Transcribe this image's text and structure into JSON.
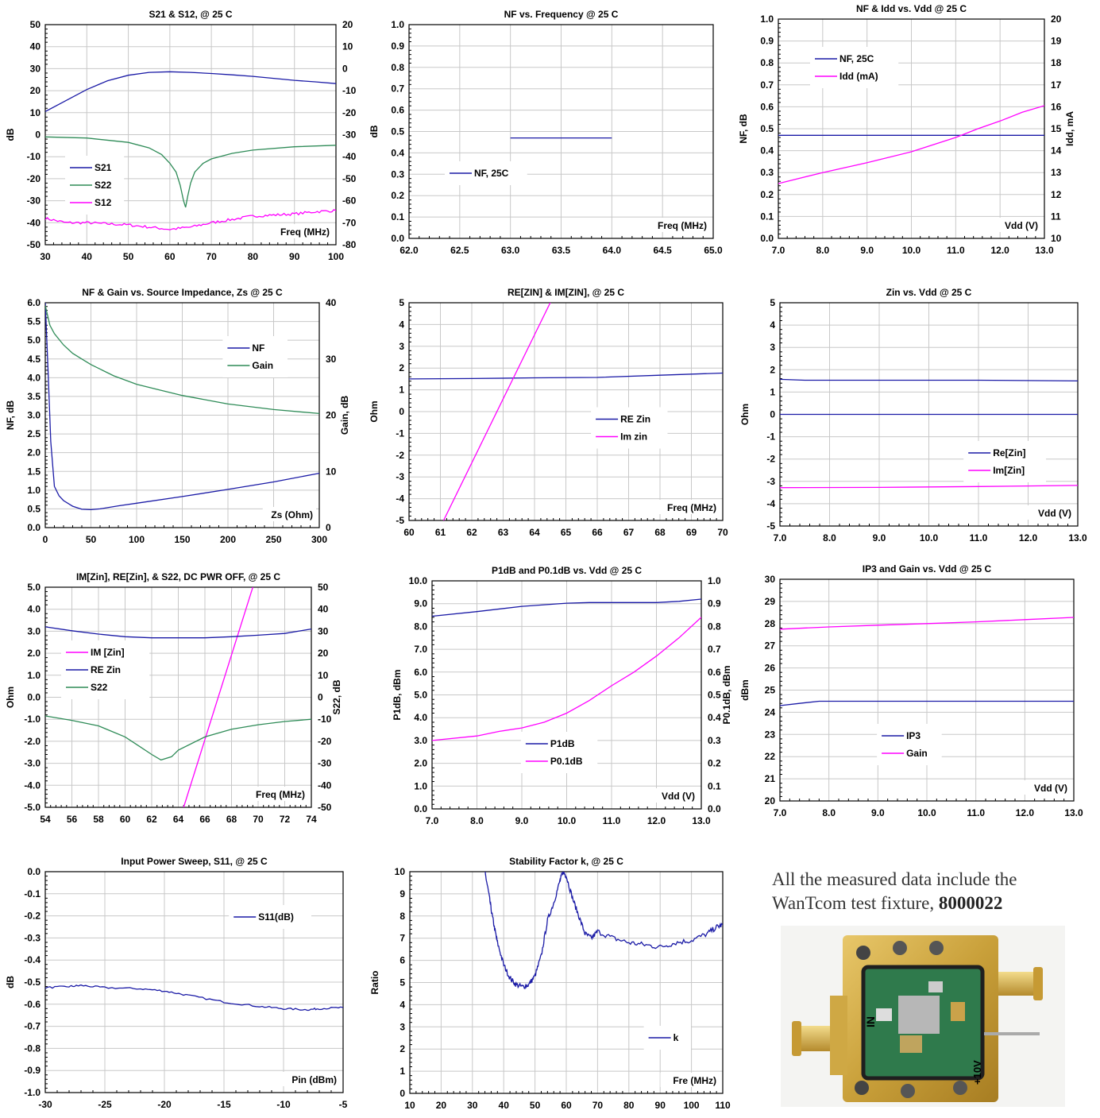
{
  "note": {
    "text": "All the measured data include the WanTcom test fixture, ",
    "bold": "8000022"
  },
  "photo": {
    "labels": [
      "IN",
      "+10V"
    ]
  },
  "chart_data": [
    {
      "title": "S21 & S12,  @ 25 C",
      "type": "line",
      "xlabel_inside": "Freq (MHz)",
      "ylabel": "dB",
      "y2label": "",
      "xlim": [
        30,
        100
      ],
      "xticks": [
        30,
        40,
        50,
        60,
        70,
        80,
        90,
        100
      ],
      "ylim": [
        -50,
        50
      ],
      "yticks": [
        -50,
        -40,
        -30,
        -20,
        -10,
        0,
        10,
        20,
        30,
        40,
        50
      ],
      "y2lim": [
        -80,
        20
      ],
      "y2ticks": [
        -80,
        -70,
        -60,
        -50,
        -40,
        -30,
        -20,
        -10,
        0,
        10,
        20
      ],
      "legend": "lower-left",
      "series": [
        {
          "name": "S21",
          "color": "#1a1aa6",
          "axis": "y",
          "noise": 0,
          "x": [
            30,
            35,
            40,
            45,
            50,
            55,
            60,
            65,
            70,
            75,
            80,
            85,
            90,
            95,
            100
          ],
          "y": [
            10.5,
            15.5,
            20.5,
            24.5,
            27,
            28.3,
            28.6,
            28.3,
            27.8,
            27.2,
            26.5,
            25.6,
            24.7,
            24,
            23.2
          ]
        },
        {
          "name": "S22",
          "color": "#2e8b57",
          "axis": "y",
          "noise": 0,
          "x": [
            30,
            40,
            50,
            55,
            58,
            60,
            61.5,
            62.5,
            63.3,
            63.8,
            64.3,
            65,
            66,
            68,
            70,
            75,
            80,
            90,
            100
          ],
          "y": [
            -1,
            -1.5,
            -3.5,
            -6,
            -9,
            -13,
            -17,
            -23,
            -30,
            -33,
            -28,
            -22,
            -17,
            -13,
            -11,
            -8.5,
            -7,
            -5.5,
            -4.8
          ]
        },
        {
          "name": "S12",
          "color": "#ff00ff",
          "axis": "y2",
          "noise": 0.6,
          "x": [
            30,
            35,
            40,
            45,
            50,
            55,
            60,
            65,
            70,
            75,
            80,
            85,
            90,
            95,
            100
          ],
          "y": [
            -68,
            -70,
            -70,
            -70.5,
            -71,
            -72,
            -73,
            -72,
            -70,
            -68.5,
            -67,
            -66.5,
            -66,
            -65,
            -64.5
          ]
        }
      ]
    },
    {
      "title": "NF vs. Frequency  @ 25 C",
      "type": "line",
      "xlabel_inside": "Freq (MHz)",
      "ylabel": "dB",
      "y2label": "",
      "xlim": [
        62,
        65
      ],
      "xticks": [
        62.0,
        62.5,
        63.0,
        63.5,
        64.0,
        64.5,
        65.0
      ],
      "ylim": [
        0,
        1
      ],
      "yticks": [
        0.0,
        0.1,
        0.2,
        0.3,
        0.4,
        0.5,
        0.6,
        0.7,
        0.8,
        0.9,
        1.0
      ],
      "legend": "left",
      "series": [
        {
          "name": "NF, 25C",
          "color": "#1a1aa6",
          "axis": "y",
          "noise": 0,
          "x": [
            63,
            64
          ],
          "y": [
            0.47,
            0.47
          ]
        }
      ]
    },
    {
      "title": "NF & Idd vs. Vdd  @ 25 C",
      "type": "line",
      "xlabel_inside": "Vdd (V)",
      "ylabel": "NF, dB",
      "y2label": "Idd, mA",
      "xlim": [
        7,
        13
      ],
      "xticks": [
        7.0,
        8.0,
        9.0,
        10.0,
        11.0,
        12.0,
        13.0
      ],
      "ylim": [
        0,
        1
      ],
      "yticks": [
        0.0,
        0.1,
        0.2,
        0.3,
        0.4,
        0.5,
        0.6,
        0.7,
        0.8,
        0.9,
        1.0
      ],
      "y2lim": [
        10,
        20
      ],
      "y2ticks": [
        10,
        11,
        12,
        13,
        14,
        15,
        16,
        17,
        18,
        19,
        20
      ],
      "legend": "top-left",
      "series": [
        {
          "name": "NF, 25C",
          "color": "#1a1aa6",
          "axis": "y",
          "noise": 0,
          "x": [
            7,
            13
          ],
          "y": [
            0.47,
            0.47
          ]
        },
        {
          "name": "Idd (mA)",
          "color": "#ff00ff",
          "axis": "y2",
          "noise": 0,
          "x": [
            7,
            8,
            9,
            10,
            11,
            11.5,
            12,
            12.5,
            13
          ],
          "y": [
            12.5,
            13,
            13.45,
            13.95,
            14.6,
            15,
            15.35,
            15.75,
            16.05
          ]
        }
      ]
    },
    {
      "title": "NF & Gain vs. Source Impedance, Zs  @ 25 C",
      "type": "line",
      "xlabel_inside": "Zs (Ohm)",
      "ylabel": "NF, dB",
      "y2label": "Gain, dB",
      "xlim": [
        0,
        300
      ],
      "xticks": [
        0,
        50,
        100,
        150,
        200,
        250,
        300
      ],
      "ylim": [
        0,
        6
      ],
      "yticks": [
        0.0,
        0.5,
        1.0,
        1.5,
        2.0,
        2.5,
        3.0,
        3.5,
        4.0,
        4.5,
        5.0,
        5.5,
        6.0
      ],
      "y2lim": [
        0,
        40
      ],
      "y2ticks": [
        0,
        10,
        20,
        30,
        40
      ],
      "legend": "top-right",
      "series": [
        {
          "name": "NF",
          "color": "#1a1aa6",
          "axis": "y",
          "noise": 0,
          "x": [
            0,
            3,
            6,
            10,
            15,
            20,
            30,
            40,
            50,
            60,
            80,
            100,
            150,
            200,
            250,
            300
          ],
          "y": [
            6,
            4.2,
            2.3,
            1.1,
            0.85,
            0.72,
            0.57,
            0.49,
            0.48,
            0.5,
            0.58,
            0.65,
            0.83,
            1.02,
            1.22,
            1.45
          ]
        },
        {
          "name": "Gain",
          "color": "#2e8b57",
          "axis": "y2",
          "noise": 0,
          "x": [
            0,
            5,
            10,
            20,
            30,
            40,
            50,
            75,
            100,
            125,
            150,
            200,
            250,
            300
          ],
          "y": [
            39.5,
            36,
            34.5,
            32.5,
            31,
            30,
            29,
            27,
            25.5,
            24.5,
            23.5,
            22,
            21,
            20.3
          ]
        }
      ]
    },
    {
      "title": "RE[ZIN] & IM[ZIN],  @ 25 C",
      "type": "line",
      "xlabel_inside": "Freq (MHz)",
      "ylabel": "Ohm",
      "y2label": "",
      "xlim": [
        60,
        70
      ],
      "xticks": [
        60,
        61,
        62,
        63,
        64,
        65,
        66,
        67,
        68,
        69,
        70
      ],
      "ylim": [
        -5,
        5
      ],
      "yticks": [
        -5,
        -4,
        -3,
        -2,
        -1,
        0,
        1,
        2,
        3,
        4,
        5
      ],
      "legend": "center-right",
      "series": [
        {
          "name": "RE Zin",
          "color": "#1a1aa6",
          "axis": "y",
          "noise": 0,
          "x": [
            60,
            62,
            64,
            66,
            68,
            70
          ],
          "y": [
            1.5,
            1.52,
            1.55,
            1.57,
            1.67,
            1.77
          ]
        },
        {
          "name": "Im zin",
          "color": "#ff00ff",
          "axis": "y",
          "noise": 0,
          "x": [
            61.1,
            64.5
          ],
          "y": [
            -5,
            5
          ]
        }
      ]
    },
    {
      "title": "Zin vs. Vdd  @ 25 C",
      "type": "line",
      "xlabel_inside": "Vdd (V)",
      "ylabel": "Ohm",
      "y2label": "",
      "xlim": [
        7,
        13
      ],
      "xticks": [
        7.0,
        8.0,
        9.0,
        10.0,
        11.0,
        12.0,
        13.0
      ],
      "ylim": [
        -5,
        5
      ],
      "yticks": [
        -5,
        -4,
        -3,
        -2,
        -1,
        0,
        1,
        2,
        3,
        4,
        5
      ],
      "legend": "lower-right",
      "series": [
        {
          "name": "Re[Zin]",
          "color": "#1a1aa6",
          "axis": "y",
          "noise": 0,
          "x": [
            7,
            7.5,
            9,
            11,
            13
          ],
          "y": [
            1.57,
            1.53,
            1.53,
            1.53,
            1.5
          ]
        },
        {
          "name": "Im[Zin]",
          "color": "#ff00ff",
          "axis": "y",
          "noise": 0,
          "x": [
            7,
            9,
            11,
            13
          ],
          "y": [
            -3.28,
            -3.27,
            -3.23,
            -3.18
          ]
        },
        {
          "name": "",
          "color": "#1a1aa6",
          "axis": "y",
          "noise": 0,
          "x": [
            7,
            13
          ],
          "y": [
            0,
            0
          ]
        }
      ]
    },
    {
      "title": "IM[Zin], RE[Zin], & S22, DC PWR OFF,  @ 25 C",
      "type": "line",
      "xlabel_inside": "Freq (MHz)",
      "ylabel": "Ohm",
      "y2label": "S22, dB",
      "xlim": [
        54,
        74
      ],
      "xticks": [
        54,
        56,
        58,
        60,
        62,
        64,
        66,
        68,
        70,
        72,
        74
      ],
      "ylim": [
        -5,
        5
      ],
      "yticks": [
        -5.0,
        -4.0,
        -3.0,
        -2.0,
        -1.0,
        0.0,
        1.0,
        2.0,
        3.0,
        4.0,
        5.0
      ],
      "y2lim": [
        -50,
        50
      ],
      "y2ticks": [
        -50,
        -40,
        -30,
        -20,
        -10,
        0,
        10,
        20,
        30,
        40,
        50
      ],
      "legend": "left",
      "series": [
        {
          "name": "IM [Zin]",
          "color": "#ff00ff",
          "axis": "y",
          "noise": 0,
          "x": [
            64.4,
            69.6
          ],
          "y": [
            -5,
            5
          ]
        },
        {
          "name": "RE Zin",
          "color": "#1a1aa6",
          "axis": "y",
          "noise": 0,
          "x": [
            54,
            56,
            58,
            60,
            62,
            64,
            66,
            68,
            70,
            72,
            74
          ],
          "y": [
            3.2,
            3.02,
            2.87,
            2.75,
            2.7,
            2.7,
            2.7,
            2.75,
            2.82,
            2.9,
            3.1
          ]
        },
        {
          "name": "S22",
          "color": "#2e8b57",
          "axis": "y2",
          "noise": 0,
          "x": [
            54,
            56,
            58,
            60,
            61,
            62,
            62.7,
            63.5,
            64,
            66,
            68,
            70,
            72,
            74
          ],
          "y": [
            -8.5,
            -10.5,
            -13,
            -18,
            -22,
            -26,
            -28.5,
            -27,
            -24,
            -18,
            -14.5,
            -12.5,
            -11,
            -10
          ]
        }
      ]
    },
    {
      "title": "P1dB and P0.1dB vs. Vdd  @ 25 C",
      "type": "line",
      "xlabel_inside": "Vdd (V)",
      "ylabel": "P1dB, dBm",
      "y2label": "P0.1dB, dBm",
      "xlim": [
        7,
        13
      ],
      "xticks": [
        7.0,
        8.0,
        9.0,
        10.0,
        11.0,
        12.0,
        13.0
      ],
      "ylim": [
        0,
        10
      ],
      "yticks": [
        0.0,
        1.0,
        2.0,
        3.0,
        4.0,
        5.0,
        6.0,
        7.0,
        8.0,
        9.0,
        10.0
      ],
      "y2lim": [
        0,
        1
      ],
      "y2ticks": [
        0.0,
        0.1,
        0.2,
        0.3,
        0.4,
        0.5,
        0.6,
        0.7,
        0.8,
        0.9,
        1.0
      ],
      "legend": "lower-center",
      "series": [
        {
          "name": "P1dB",
          "color": "#1a1aa6",
          "axis": "y",
          "noise": 0,
          "x": [
            7,
            8,
            9,
            10,
            10.5,
            11,
            12,
            12.5,
            13
          ],
          "y": [
            8.45,
            8.65,
            8.88,
            9.02,
            9.05,
            9.05,
            9.05,
            9.1,
            9.2
          ]
        },
        {
          "name": "P0.1dB",
          "color": "#ff00ff",
          "axis": "y2",
          "noise": 0,
          "x": [
            7,
            8,
            8.5,
            9,
            9.5,
            10,
            10.5,
            11,
            11.5,
            12,
            12.5,
            13
          ],
          "y": [
            0.3,
            0.32,
            0.34,
            0.355,
            0.38,
            0.42,
            0.475,
            0.54,
            0.6,
            0.67,
            0.75,
            0.84
          ]
        }
      ]
    },
    {
      "title": "IP3 and Gain vs. Vdd  @ 25 C",
      "type": "line",
      "xlabel_inside": "Vdd (V)",
      "ylabel": "dBm",
      "y2label": "",
      "xlim": [
        7,
        13
      ],
      "xticks": [
        7.0,
        8.0,
        9.0,
        10.0,
        11.0,
        12.0,
        13.0
      ],
      "ylim": [
        20,
        30
      ],
      "yticks": [
        20,
        21,
        22,
        23,
        24,
        25,
        26,
        27,
        28,
        29,
        30
      ],
      "legend": "lower-center",
      "series": [
        {
          "name": "IP3",
          "color": "#1a1aa6",
          "axis": "y",
          "noise": 0,
          "x": [
            7,
            7.4,
            7.8,
            13
          ],
          "y": [
            24.3,
            24.4,
            24.5,
            24.5
          ]
        },
        {
          "name": "Gain",
          "color": "#ff00ff",
          "axis": "y",
          "noise": 0,
          "x": [
            7,
            8,
            9,
            10,
            11,
            12,
            13
          ],
          "y": [
            27.75,
            27.85,
            27.93,
            28,
            28.08,
            28.18,
            28.28
          ]
        }
      ]
    },
    {
      "title": "Input Power Sweep, S11,  @ 25 C",
      "type": "line",
      "xlabel_inside": "Pin (dBm)",
      "ylabel": "dB",
      "y2label": "",
      "xlim": [
        -30,
        -5
      ],
      "xticks": [
        -30,
        -25,
        -20,
        -15,
        -10,
        -5
      ],
      "ylim": [
        -1,
        0
      ],
      "yticks": [
        -1.0,
        -0.9,
        -0.8,
        -0.7,
        -0.6,
        -0.5,
        -0.4,
        -0.3,
        -0.2,
        -0.1,
        0.0
      ],
      "legend": "top-right",
      "series": [
        {
          "name": "S11(dB)",
          "color": "#1a1aa6",
          "axis": "y",
          "noise": 0.004,
          "x": [
            -30,
            -28,
            -27,
            -25,
            -22,
            -20,
            -18,
            -15,
            -12,
            -10,
            -8,
            -7,
            -5
          ],
          "y": [
            -0.525,
            -0.52,
            -0.515,
            -0.525,
            -0.53,
            -0.54,
            -0.56,
            -0.59,
            -0.61,
            -0.62,
            -0.625,
            -0.62,
            -0.615
          ]
        }
      ]
    },
    {
      "title": "Stability Factor k,  @ 25 C",
      "type": "line",
      "xlabel_inside": "Fre (MHz)",
      "ylabel": "Ratio",
      "y2label": "",
      "xlim": [
        10,
        110
      ],
      "xticks": [
        10,
        20,
        30,
        40,
        50,
        60,
        70,
        80,
        90,
        100,
        110
      ],
      "ylim": [
        0,
        10
      ],
      "yticks": [
        0,
        1,
        2,
        3,
        4,
        5,
        6,
        7,
        8,
        9,
        10
      ],
      "legend": "lower-right",
      "series": [
        {
          "name": "k",
          "color": "#1a1aa6",
          "axis": "y",
          "noise": 0.12,
          "x": [
            34,
            35,
            36,
            37,
            38,
            40,
            42,
            44,
            46,
            48,
            50,
            52,
            54,
            56,
            58,
            59,
            60,
            62,
            64,
            66,
            68,
            70,
            75,
            80,
            85,
            90,
            95,
            100,
            105,
            108,
            110
          ],
          "y": [
            10,
            9.2,
            8.3,
            7.5,
            6.8,
            5.8,
            5.2,
            4.9,
            4.8,
            4.9,
            5.3,
            6.2,
            7.8,
            8.6,
            9.6,
            10,
            9.8,
            8.8,
            8.0,
            7.2,
            7.0,
            7.3,
            7.0,
            6.8,
            6.7,
            6.6,
            6.8,
            6.9,
            7.2,
            7.5,
            7.6
          ]
        }
      ]
    }
  ]
}
